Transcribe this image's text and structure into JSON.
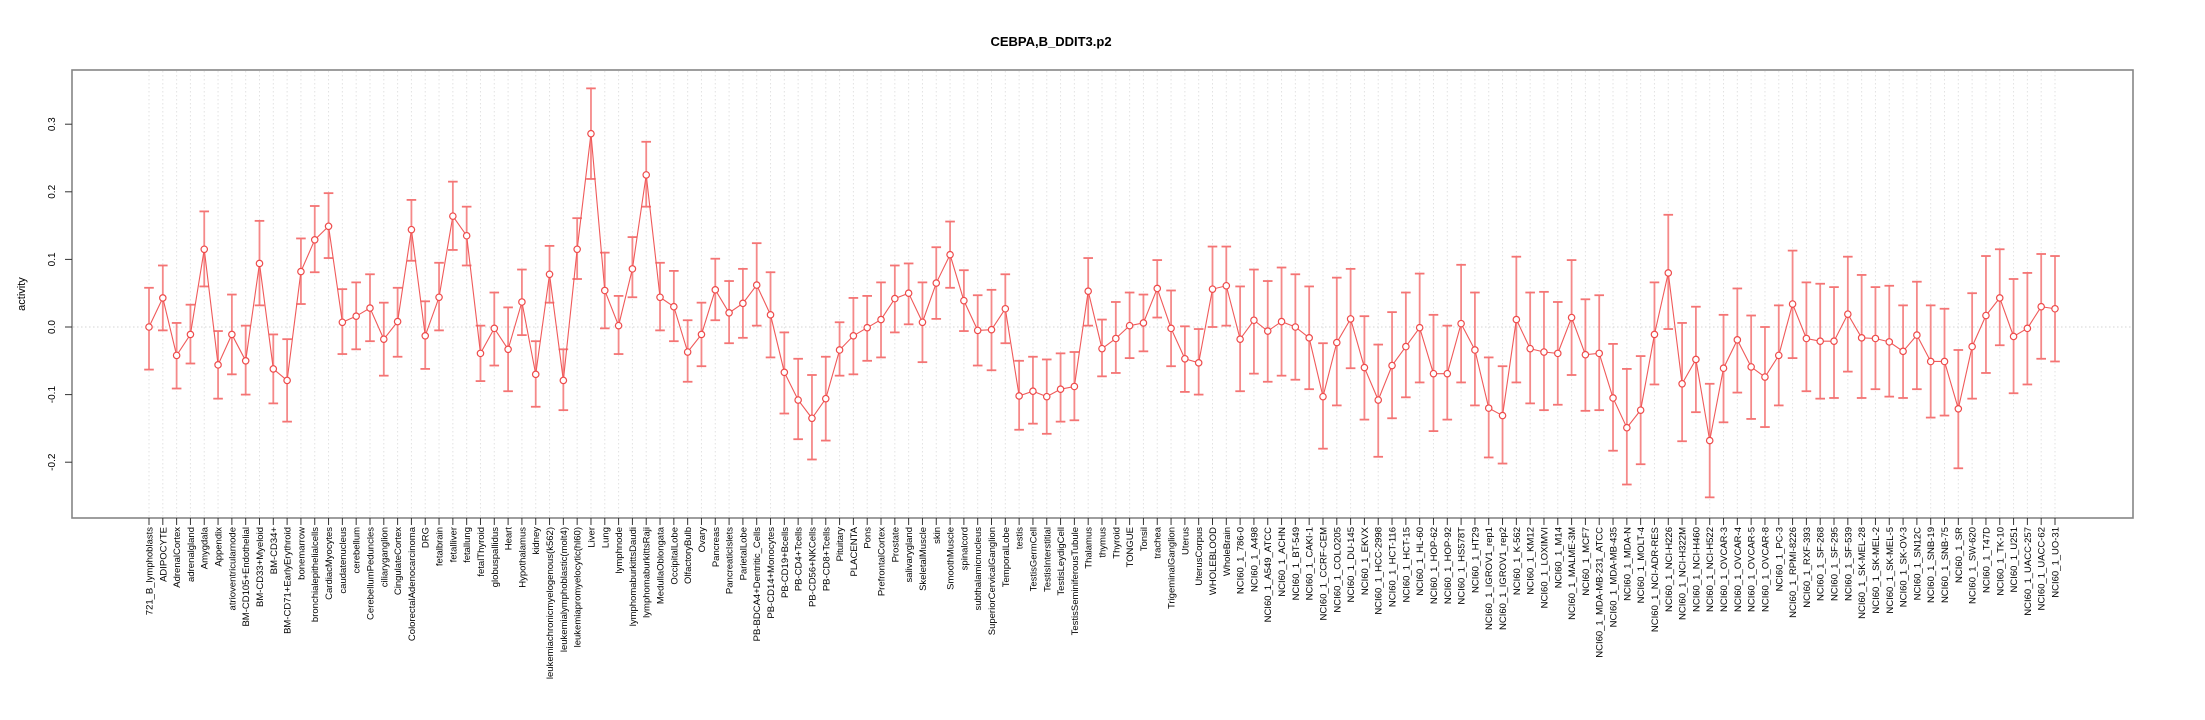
{
  "title": "CEBPA,B_DDIT3.p2",
  "colors": {
    "point_stroke": "#ee4b4b",
    "line": "#f05a5a",
    "error_bar": "#f58989",
    "error_cap": "#f47474",
    "gridline": "#e2e2e2",
    "zero_line": "#d4d4d4",
    "frame": "#858585",
    "tick": "#333333",
    "text": "#000000"
  },
  "chart_data": {
    "type": "line",
    "subtype": "points-with-error-bars",
    "title": "CEBPA,B_DDIT3.p2",
    "xlabel": "",
    "ylabel": "activity",
    "ylim": [
      -0.28,
      0.38
    ],
    "ytick_values": [
      -0.2,
      -0.1,
      0.0,
      0.1,
      0.2,
      0.3
    ],
    "ytick_labels": [
      "-0.2",
      "-0.1",
      "0.0",
      "0.1",
      "0.2",
      "0.3"
    ],
    "grid": "vertical dashed gridline at every category; dotted horizontal line at y=0",
    "legend_position": "none",
    "categories": [
      "721_B_lymphoblasts",
      "ADIPOCYTE",
      "AdrenalCortex",
      "adrenalgland",
      "Amygdala",
      "Appendix",
      "atrioventricularnode",
      "BM-CD105+Endothelial",
      "BM-CD33+Myeloid",
      "BM-CD34+",
      "BM-CD71+EarlyErythroid",
      "bonemarrow",
      "bronchialepithelialcells",
      "CardiacMyocytes",
      "caudatenucleus",
      "cerebellum",
      "CerebellumPeduncles",
      "ciliaryganglion",
      "CingulateCortex",
      "ColorectalAdenocarcinoma",
      "DRG",
      "fetalbrain",
      "fetalliver",
      "fetallung",
      "fetalThyroid",
      "globuspallidus",
      "Heart",
      "Hypothalamus",
      "kidney",
      "leukemiachronicmyelogenous(k562)",
      "leukemialymphoblastic(molt4)",
      "leukemiapromyelocytic(hl60)",
      "Liver",
      "Lung",
      "lymphnode",
      "lymphomaburkittsDaudi",
      "lymphomaburkittsRaji",
      "MedullaOblongata",
      "OccipitalLobe",
      "OlfactoryBulb",
      "Ovary",
      "Pancreas",
      "PancreaticIslets",
      "ParietalLobe",
      "PB-BDCA4+Dentritic_Cells",
      "PB-CD14+Monocytes",
      "PB-CD19+Bcells",
      "PB-CD4+Tcells",
      "PB-CD56+NKCells",
      "PB-CD8+Tcells",
      "Pituitary",
      "PLACENTA",
      "Pons",
      "PrefrontalCortex",
      "Prostate",
      "salivarygland",
      "SkeletalMuscle",
      "skin",
      "SmoothMuscle",
      "spinalcord",
      "subthalamicnucleus",
      "SuperiorCervicalGanglion",
      "TemporalLobe",
      "testis",
      "TestisGermCell",
      "TestisInterstitial",
      "TestisLeydigCell",
      "TestisSeminiferousTubule",
      "Thalamus",
      "thymus",
      "Thyroid",
      "TONGUE",
      "Tonsil",
      "trachea",
      "TrigeminalGanglion",
      "Uterus",
      "UterusCorpus",
      "WHOLEBLOOD",
      "WholeBrain",
      "NCI60_1_786-0",
      "NCI60_1_A498",
      "NCI60_1_A549_ATCC",
      "NCI60_1_ACHN",
      "NCI60_1_BT-549",
      "NCI60_1_CAKI-1",
      "NCI60_1_CCRF-CEM",
      "NCI60_1_COLO205",
      "NCI60_1_DU-145",
      "NCI60_1_EKVX",
      "NCI60_1_HCC-2998",
      "NCI60_1_HCT-116",
      "NCI60_1_HCT-15",
      "NCI60_1_HL-60",
      "NCI60_1_HOP-62",
      "NCI60_1_HOP-92",
      "NCI60_1_HS578T",
      "NCI60_1_HT29",
      "NCI60_1_IGROV1_rep1",
      "NCI60_1_IGROV1_rep2",
      "NCI60_1_K-562",
      "NCI60_1_KM12",
      "NCI60_1_LOXIMVI",
      "NCI60_1_M14",
      "NCI60_1_MALME-3M",
      "NCI60_1_MCF7",
      "NCI60_1_MDA-MB-231_ATCC",
      "NCI60_1_MDA-MB-435",
      "NCI60_1_MDA-N",
      "NCI60_1_MOLT-4",
      "NCI60_1_NCI-ADR-RES",
      "NCI60_1_NCI-H226",
      "NCI60_1_NCI-H322M",
      "NCI60_1_NCI-H460",
      "NCI60_1_NCI-H522",
      "NCI60_1_OVCAR-3",
      "NCI60_1_OVCAR-4",
      "NCI60_1_OVCAR-5",
      "NCI60_1_OVCAR-8",
      "NCI60_1_PC-3",
      "NCI60_1_RPMI-8226",
      "NCI60_1_RXF-393",
      "NCI60_1_SF-268",
      "NCI60_1_SF-295",
      "NCI60_1_SF-539",
      "NCI60_1_SK-MEL-28",
      "NCI60_1_SK-MEL-2",
      "NCI60_1_SK-MEL-5",
      "NCI60_1_SK-OV-3",
      "NCI60_1_SN12C",
      "NCI60_1_SNB-19",
      "NCI60_1_SNB-75",
      "NCI60_1_SR",
      "NCI60_1_SW-620",
      "NCI60_1_T47D",
      "NCI60_1_TK-10",
      "NCI60_1_U251",
      "NCI60_1_UACC-257",
      "NCI60_1_UACC-62",
      "NCI60_1_UO-31"
    ],
    "series": [
      {
        "name": "activity",
        "values": [
          0.0,
          0.043,
          -0.042,
          -0.011,
          0.115,
          -0.056,
          -0.011,
          -0.05,
          0.094,
          -0.062,
          -0.079,
          0.082,
          0.129,
          0.149,
          0.007,
          0.016,
          0.028,
          -0.018,
          0.008,
          0.144,
          -0.013,
          0.044,
          0.164,
          0.135,
          -0.039,
          -0.002,
          -0.033,
          0.037,
          -0.07,
          0.078,
          -0.079,
          0.115,
          0.286,
          0.054,
          0.002,
          0.086,
          0.225,
          0.044,
          0.03,
          -0.037,
          -0.011,
          0.055,
          0.021,
          0.035,
          0.062,
          0.018,
          -0.067,
          -0.108,
          -0.135,
          -0.106,
          -0.034,
          -0.013,
          -0.001,
          0.011,
          0.042,
          0.05,
          0.007,
          0.065,
          0.107,
          0.039,
          -0.005,
          -0.004,
          0.027,
          -0.102,
          -0.095,
          -0.103,
          -0.092,
          -0.088,
          0.053,
          -0.032,
          -0.017,
          0.002,
          0.006,
          0.057,
          -0.002,
          -0.047,
          -0.053,
          0.056,
          0.061,
          -0.018,
          0.01,
          -0.006,
          0.008,
          0.0,
          -0.016,
          -0.103,
          -0.023,
          0.012,
          -0.06,
          -0.108,
          -0.057,
          -0.029,
          -0.001,
          -0.069,
          -0.069,
          0.005,
          -0.034,
          -0.12,
          -0.131,
          0.011,
          -0.032,
          -0.037,
          -0.039,
          0.014,
          -0.041,
          -0.039,
          -0.105,
          -0.149,
          -0.123,
          -0.011,
          0.08,
          -0.084,
          -0.048,
          -0.168,
          -0.061,
          -0.019,
          -0.059,
          -0.074,
          -0.042,
          0.034,
          -0.017,
          -0.021,
          -0.021,
          0.019,
          -0.016,
          -0.017,
          -0.022,
          -0.036,
          -0.012,
          -0.051,
          -0.051,
          -0.121,
          -0.029,
          0.017,
          0.043,
          -0.014,
          -0.002,
          0.03,
          0.027
        ],
        "err_lo": [
          -0.063,
          -0.005,
          -0.091,
          -0.054,
          0.06,
          -0.106,
          -0.07,
          -0.1,
          0.032,
          -0.113,
          -0.14,
          0.034,
          0.081,
          0.102,
          -0.04,
          -0.033,
          -0.021,
          -0.072,
          -0.044,
          0.098,
          -0.062,
          -0.005,
          0.114,
          0.091,
          -0.08,
          -0.057,
          -0.095,
          -0.012,
          -0.118,
          0.036,
          -0.123,
          0.071,
          0.219,
          -0.002,
          -0.04,
          0.044,
          0.178,
          -0.005,
          -0.021,
          -0.081,
          -0.058,
          0.01,
          -0.024,
          -0.016,
          0.002,
          -0.045,
          -0.128,
          -0.166,
          -0.196,
          -0.168,
          -0.072,
          -0.07,
          -0.05,
          -0.045,
          -0.008,
          0.004,
          -0.052,
          0.012,
          0.058,
          -0.006,
          -0.057,
          -0.064,
          -0.024,
          -0.152,
          -0.143,
          -0.158,
          -0.14,
          -0.138,
          0.002,
          -0.073,
          -0.068,
          -0.046,
          -0.036,
          0.014,
          -0.058,
          -0.096,
          -0.1,
          0.0,
          0.002,
          -0.095,
          -0.069,
          -0.081,
          -0.072,
          -0.078,
          -0.092,
          -0.18,
          -0.116,
          -0.061,
          -0.137,
          -0.192,
          -0.135,
          -0.104,
          -0.082,
          -0.154,
          -0.137,
          -0.082,
          -0.116,
          -0.193,
          -0.202,
          -0.082,
          -0.113,
          -0.123,
          -0.115,
          -0.071,
          -0.124,
          -0.123,
          -0.183,
          -0.233,
          -0.203,
          -0.085,
          -0.003,
          -0.169,
          -0.126,
          -0.252,
          -0.141,
          -0.097,
          -0.136,
          -0.148,
          -0.116,
          -0.046,
          -0.095,
          -0.106,
          -0.105,
          -0.066,
          -0.105,
          -0.092,
          -0.103,
          -0.105,
          -0.092,
          -0.134,
          -0.131,
          -0.209,
          -0.106,
          -0.068,
          -0.027,
          -0.098,
          -0.085,
          -0.047,
          -0.051
        ],
        "err_hi": [
          0.058,
          0.091,
          0.006,
          0.033,
          0.171,
          -0.006,
          0.048,
          0.002,
          0.157,
          -0.011,
          -0.018,
          0.131,
          0.179,
          0.198,
          0.056,
          0.066,
          0.078,
          0.036,
          0.058,
          0.188,
          0.038,
          0.095,
          0.215,
          0.178,
          0.002,
          0.051,
          0.029,
          0.085,
          -0.021,
          0.12,
          -0.033,
          0.161,
          0.353,
          0.11,
          0.046,
          0.133,
          0.274,
          0.095,
          0.083,
          0.01,
          0.036,
          0.101,
          0.068,
          0.086,
          0.124,
          0.081,
          -0.008,
          -0.047,
          -0.071,
          -0.044,
          0.007,
          0.043,
          0.046,
          0.066,
          0.091,
          0.094,
          0.066,
          0.118,
          0.156,
          0.084,
          0.047,
          0.055,
          0.078,
          -0.05,
          -0.044,
          -0.048,
          -0.039,
          -0.037,
          0.102,
          0.011,
          0.037,
          0.051,
          0.048,
          0.099,
          0.054,
          0.001,
          -0.003,
          0.119,
          0.119,
          0.06,
          0.085,
          0.068,
          0.088,
          0.078,
          0.06,
          -0.024,
          0.073,
          0.086,
          0.016,
          -0.026,
          0.022,
          0.051,
          0.079,
          0.018,
          0.002,
          0.092,
          0.051,
          -0.045,
          -0.058,
          0.104,
          0.051,
          0.052,
          0.037,
          0.099,
          0.041,
          0.047,
          -0.025,
          -0.062,
          -0.043,
          0.066,
          0.166,
          0.006,
          0.03,
          -0.084,
          0.018,
          0.057,
          0.017,
          0.0,
          0.032,
          0.113,
          0.066,
          0.064,
          0.059,
          0.104,
          0.077,
          0.059,
          0.061,
          0.032,
          0.067,
          0.032,
          0.027,
          -0.034,
          0.05,
          0.105,
          0.115,
          0.071,
          0.08,
          0.108,
          0.105
        ]
      }
    ]
  }
}
